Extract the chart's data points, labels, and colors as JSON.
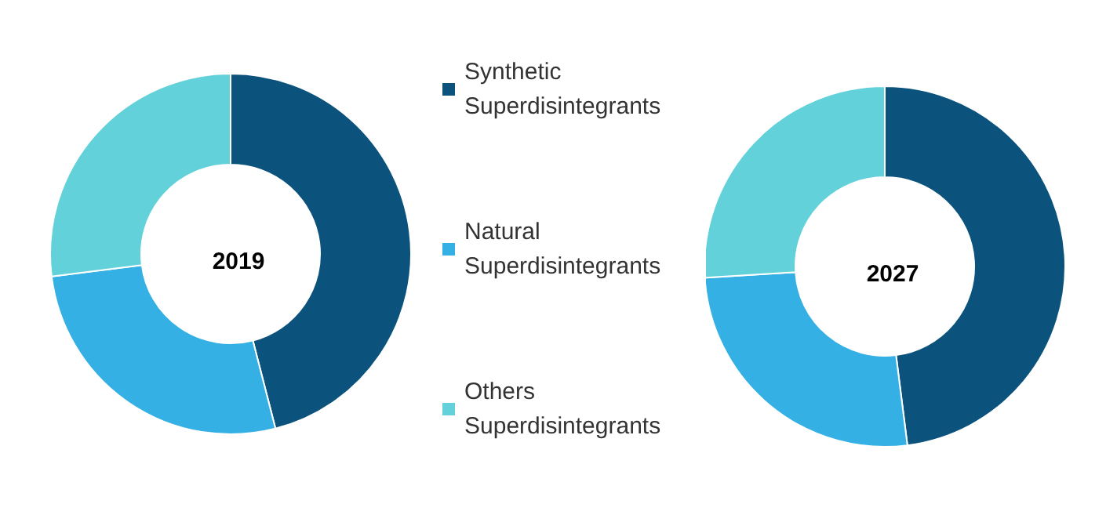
{
  "chart_data": [
    {
      "type": "donut",
      "title": "2019",
      "categories": [
        "Synthetic Superdisintegrants",
        "Natural Superdisintegrants",
        "Others Superdisintegrants"
      ],
      "values": [
        46,
        27,
        27
      ],
      "colors": [
        "#0b527c",
        "#35b0e4",
        "#62d1d9"
      ],
      "legend": "right"
    },
    {
      "type": "donut",
      "title": "2027",
      "categories": [
        null,
        null,
        null
      ],
      "values": [
        48,
        26,
        26
      ],
      "colors": [
        "#0b527c",
        "#35b0e4",
        "#62d1d9"
      ],
      "legend": false
    }
  ]
}
